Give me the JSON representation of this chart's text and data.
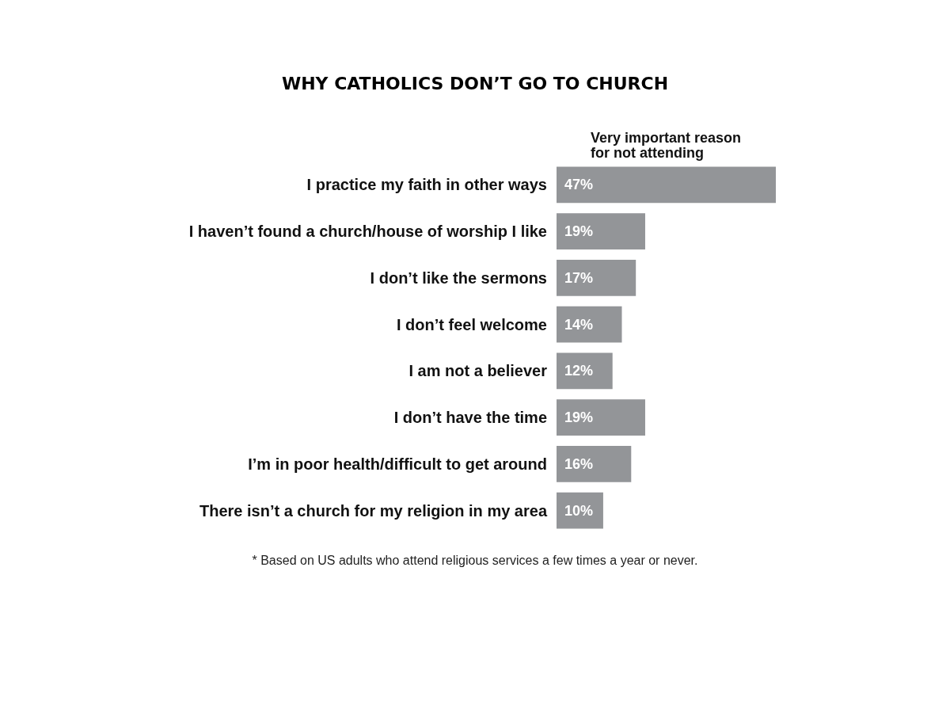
{
  "chart_data": {
    "type": "bar",
    "orientation": "horizontal",
    "title": "WHY CATHOLICS DON’T GO TO CHURCH",
    "subtitle": "Very important reason for not attending",
    "categories": [
      "I practice my faith in other ways",
      "I haven’t found a church/house of worship I like",
      "I don’t like the sermons",
      "I don’t feel welcome",
      "I am not a believer",
      "I don’t have the time",
      "I’m in poor health/difficult to get around",
      "There isn’t a church for my religion in my area"
    ],
    "values": [
      47,
      19,
      17,
      14,
      12,
      19,
      16,
      10
    ],
    "value_labels": [
      "47%",
      "19%",
      "17%",
      "14%",
      "12%",
      "19%",
      "16%",
      "10%"
    ],
    "color": "#939598",
    "tick_labels": "y",
    "annotations": [
      "* Based on US adults who attend religious services a few times a year or never."
    ]
  }
}
